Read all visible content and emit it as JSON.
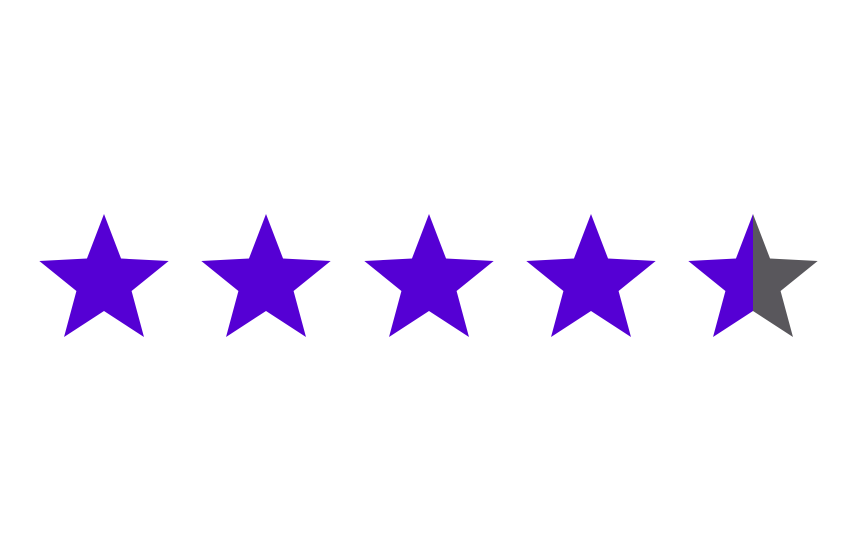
{
  "rating": {
    "value": 4.5,
    "max": 5,
    "filled_color": "#5500d4",
    "empty_color": "#59575c",
    "star_icon": "star-icon"
  }
}
